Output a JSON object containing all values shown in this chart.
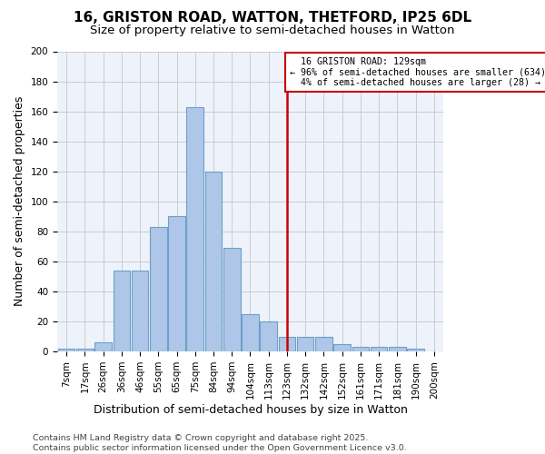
{
  "title": "16, GRISTON ROAD, WATTON, THETFORD, IP25 6DL",
  "subtitle": "Size of property relative to semi-detached houses in Watton",
  "xlabel": "Distribution of semi-detached houses by size in Watton",
  "ylabel": "Number of semi-detached properties",
  "bin_labels": [
    "7sqm",
    "17sqm",
    "26sqm",
    "36sqm",
    "46sqm",
    "55sqm",
    "65sqm",
    "75sqm",
    "84sqm",
    "94sqm",
    "104sqm",
    "113sqm",
    "123sqm",
    "132sqm",
    "142sqm",
    "152sqm",
    "161sqm",
    "171sqm",
    "181sqm",
    "190sqm",
    "200sqm"
  ],
  "bar_heights": [
    2,
    2,
    6,
    54,
    54,
    83,
    90,
    163,
    120,
    69,
    25,
    20,
    10,
    10,
    10,
    5,
    3,
    3,
    3,
    2,
    0
  ],
  "bar_color": "#aec6e8",
  "bar_edge_color": "#6ca0c8",
  "property_label": "16 GRISTON ROAD: 129sqm",
  "pct_smaller": 96,
  "count_smaller": 634,
  "pct_larger": 4,
  "count_larger": 28,
  "annotation_box_color": "#cc0000",
  "vline_color": "#cc0000",
  "grid_color": "#cccccc",
  "background_color": "#eef2fa",
  "footer_text": "Contains HM Land Registry data © Crown copyright and database right 2025.\nContains public sector information licensed under the Open Government Licence v3.0.",
  "ylim": [
    0,
    200
  ],
  "yticks": [
    0,
    20,
    40,
    60,
    80,
    100,
    120,
    140,
    160,
    180,
    200
  ],
  "title_fontsize": 11,
  "subtitle_fontsize": 9.5,
  "axis_label_fontsize": 9,
  "tick_fontsize": 7.5,
  "footer_fontsize": 6.8,
  "vline_index": 12
}
